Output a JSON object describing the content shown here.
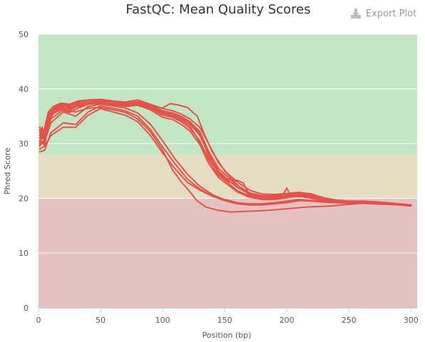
{
  "chart_data": {
    "type": "line",
    "title": "FastQC: Mean Quality Scores",
    "xlabel": "Position (bp)",
    "ylabel": "Phred Score",
    "xlim": [
      0,
      305
    ],
    "ylim": [
      0,
      50
    ],
    "x_ticks": [
      "0",
      "50",
      "100",
      "150",
      "200",
      "250",
      "300"
    ],
    "y_ticks": [
      "0",
      "10",
      "20",
      "30",
      "40",
      "50"
    ],
    "bands": [
      {
        "from": 28,
        "to": 50,
        "color": "#c4e5c4"
      },
      {
        "from": 20,
        "to": 28,
        "color": "#e6dcc3"
      },
      {
        "from": 0,
        "to": 20,
        "color": "#e5c1c1"
      }
    ],
    "line_color": "#e2534b",
    "grid": true,
    "legend": "none",
    "series": [
      {
        "x": [
          1,
          3,
          5,
          8,
          12,
          18,
          25,
          32,
          40,
          50,
          60,
          70,
          80,
          90,
          100,
          108,
          115,
          122,
          130,
          137,
          145,
          152,
          160,
          170,
          180,
          190,
          200,
          210,
          220,
          230,
          240,
          250,
          260,
          270,
          280,
          290,
          300
        ],
        "y": [
          32,
          33,
          31,
          35,
          36.2,
          37,
          36.8,
          37.4,
          37.6,
          37.8,
          37.5,
          37.2,
          37.5,
          36.8,
          35.6,
          35.2,
          34.6,
          33.6,
          31.5,
          28,
          25,
          23.5,
          22,
          20.8,
          20.3,
          20.3,
          20.5,
          20.8,
          20.4,
          19.8,
          19.4,
          19.3,
          19.3,
          19.2,
          19.1,
          18.9,
          18.7
        ]
      },
      {
        "x": [
          1,
          3,
          5,
          8,
          12,
          18,
          25,
          32,
          40,
          50,
          60,
          70,
          80,
          90,
          100,
          108,
          115,
          122,
          130,
          137,
          145,
          152,
          160,
          170,
          180,
          190,
          200,
          210,
          220,
          230,
          240,
          250,
          260,
          270,
          280,
          290,
          300
        ],
        "y": [
          31.5,
          32.5,
          30.5,
          34.5,
          36,
          36.5,
          36,
          37,
          37.5,
          37.6,
          37.3,
          37,
          37.2,
          36.5,
          35.2,
          34.8,
          34,
          32.8,
          30.5,
          27,
          24.2,
          23,
          21.4,
          20.4,
          20,
          20,
          20.3,
          20.6,
          20.2,
          19.6,
          19.3,
          19.2,
          19.2,
          19.1,
          19,
          18.9,
          18.7
        ]
      },
      {
        "x": [
          1,
          3,
          5,
          8,
          12,
          18,
          25,
          32,
          40,
          50,
          60,
          70,
          80,
          90,
          100,
          108,
          115,
          122,
          130,
          137,
          145,
          152,
          160,
          170,
          180,
          190,
          200,
          210,
          220,
          230,
          240,
          250,
          260,
          270,
          280,
          290,
          300
        ],
        "y": [
          33,
          32,
          32.5,
          35.5,
          36.5,
          37.2,
          37,
          37.6,
          37.9,
          38,
          37.7,
          37.4,
          37.7,
          37,
          36,
          35.6,
          35,
          34,
          32.2,
          28.6,
          25.5,
          24,
          22.4,
          21,
          20.5,
          20.5,
          20.7,
          21,
          20.6,
          20,
          19.6,
          19.4,
          19.4,
          19.3,
          19.2,
          19,
          18.8
        ]
      },
      {
        "x": [
          1,
          3,
          5,
          8,
          12,
          18,
          25,
          32,
          40,
          50,
          60,
          70,
          80,
          90,
          100,
          108,
          115,
          122,
          130,
          137,
          145,
          152,
          160,
          170,
          180,
          190,
          200,
          210,
          220,
          230,
          240,
          250,
          260,
          270,
          280,
          290,
          300
        ],
        "y": [
          30.5,
          30,
          31,
          34,
          35.5,
          36.2,
          35.7,
          36.5,
          37.2,
          37.4,
          37.1,
          36.8,
          37,
          36.2,
          34.8,
          34.4,
          33.5,
          32.3,
          29.8,
          26.4,
          23.8,
          22.6,
          21.2,
          20.2,
          19.8,
          19.8,
          20.1,
          20.4,
          20,
          19.5,
          19.2,
          19.1,
          19.1,
          19,
          18.9,
          18.8,
          18.6
        ]
      },
      {
        "x": [
          1,
          3,
          5,
          8,
          12,
          18,
          25,
          32,
          40,
          50,
          60,
          70,
          80,
          90,
          100,
          108,
          115,
          122,
          130,
          137,
          145,
          152,
          160,
          170,
          180,
          190,
          200,
          210,
          220,
          230,
          240,
          250,
          260,
          270,
          280,
          290,
          300
        ],
        "y": [
          32.5,
          31,
          33,
          35.8,
          36.8,
          37.4,
          37.2,
          37.8,
          38,
          38.1,
          37.8,
          37.6,
          38,
          37.2,
          36.4,
          36,
          35.4,
          34.5,
          33,
          30,
          26.5,
          24.6,
          23,
          21.5,
          20.8,
          20.7,
          20.9,
          21.1,
          20.8,
          20.1,
          19.7,
          19.5,
          19.5,
          19.4,
          19.2,
          19,
          18.8
        ]
      },
      {
        "x": [
          1,
          3,
          5,
          8,
          12,
          18,
          25,
          32,
          40,
          50,
          60,
          70,
          80,
          90,
          100,
          108,
          115,
          122,
          130,
          137,
          145,
          152,
          160,
          165,
          170,
          180,
          190,
          196,
          200,
          203,
          210,
          220,
          230,
          240,
          250,
          260,
          270,
          280,
          290,
          300
        ],
        "y": [
          30,
          32,
          30,
          34.5,
          36,
          36.8,
          36.3,
          37,
          37.6,
          37.7,
          37.4,
          37,
          37.3,
          36.6,
          35.5,
          35,
          34.3,
          33.2,
          30.2,
          27.5,
          24.8,
          23.5,
          23.3,
          22.8,
          20.5,
          19.8,
          19.8,
          20.2,
          21.9,
          20.5,
          20.3,
          20.3,
          19.8,
          19.4,
          19.2,
          19.2,
          19.1,
          19,
          18.9,
          18.7
        ]
      },
      {
        "x": [
          1,
          3,
          5,
          8,
          12,
          18,
          25,
          32,
          40,
          50,
          60,
          70,
          80,
          90,
          100,
          106,
          112,
          120,
          128,
          133,
          140,
          150,
          160,
          170,
          180,
          190,
          200,
          210,
          220,
          230,
          240,
          250,
          260,
          270,
          280,
          290,
          300
        ],
        "y": [
          31,
          32,
          31.5,
          35,
          36.3,
          36.8,
          36.4,
          37.2,
          37.5,
          37.5,
          37.2,
          37,
          37.5,
          36.9,
          36.5,
          37.3,
          37.1,
          36.6,
          35,
          32,
          28.5,
          25,
          22.5,
          20.6,
          20,
          20.1,
          20.4,
          20.7,
          20.3,
          19.7,
          19.4,
          19.3,
          19.3,
          19.2,
          19.1,
          18.9,
          18.7
        ]
      },
      {
        "x": [
          1,
          3,
          5,
          8,
          12,
          18,
          25,
          32,
          40,
          50,
          60,
          70,
          80,
          90,
          100,
          108,
          115,
          122,
          130,
          137,
          145,
          152,
          160,
          170,
          180,
          190,
          200,
          210,
          220,
          230,
          240,
          250,
          260,
          270,
          280,
          290,
          300
        ],
        "y": [
          29.5,
          30.5,
          29.5,
          34,
          35.8,
          36.5,
          36.6,
          36.8,
          37.2,
          37.5,
          37.3,
          37.1,
          37.4,
          36.8,
          35.8,
          35.5,
          34.8,
          33.9,
          31.8,
          28.3,
          24.6,
          23.2,
          22.4,
          20.9,
          20.3,
          20.4,
          20.6,
          21,
          20.5,
          19.9,
          19.5,
          19.4,
          19.4,
          19.3,
          19.1,
          18.9,
          18.7
        ]
      },
      {
        "x": [
          1,
          5,
          10,
          20,
          30,
          40,
          50,
          60,
          70,
          80,
          90,
          100,
          110,
          120,
          130,
          140,
          150,
          160,
          170,
          180,
          190,
          200,
          210,
          220,
          230,
          240,
          250,
          260,
          270,
          280,
          290,
          300
        ],
        "y": [
          29,
          29.5,
          31.5,
          33,
          33,
          35.2,
          36.4,
          35.8,
          35.2,
          34,
          31.5,
          28.3,
          25.4,
          22.9,
          21.5,
          20.4,
          19.6,
          19,
          18.8,
          18.8,
          19,
          19.2,
          19.6,
          19.5,
          19.3,
          19.2,
          19.2,
          19.2,
          19.2,
          19,
          18.9,
          18.7
        ]
      },
      {
        "x": [
          1,
          5,
          10,
          20,
          30,
          40,
          50,
          60,
          70,
          80,
          90,
          100,
          110,
          120,
          130,
          140,
          150,
          160,
          170,
          180,
          190,
          200,
          210,
          220,
          230,
          240,
          250,
          260,
          270,
          280,
          290,
          300
        ],
        "y": [
          28.5,
          28.8,
          32,
          33.8,
          33.5,
          35.8,
          36.9,
          36.5,
          36,
          35,
          32.6,
          29.4,
          26.3,
          23.5,
          21.7,
          20.5,
          19.8,
          19.2,
          19,
          19,
          19.2,
          19.5,
          19.8,
          19.6,
          19.4,
          19.3,
          19.3,
          19.3,
          19.2,
          19.1,
          18.9,
          18.7
        ]
      },
      {
        "x": [
          1,
          5,
          10,
          20,
          30,
          40,
          50,
          60,
          70,
          80,
          90,
          100,
          110,
          120,
          130,
          140,
          150,
          160,
          170,
          180,
          190,
          200,
          210,
          220,
          230,
          240,
          250,
          260,
          270,
          280,
          290,
          300
        ],
        "y": [
          29.8,
          30.5,
          33.8,
          35.8,
          35,
          36.8,
          37.2,
          36.9,
          36.5,
          35.6,
          33.6,
          30.5,
          27.2,
          24.4,
          22.2,
          20.7,
          19.7,
          19.1,
          18.8,
          18.8,
          19,
          19.3,
          19.7,
          19.6,
          19.4,
          19.3,
          19.3,
          19.3,
          19.2,
          19.1,
          18.9,
          18.7
        ]
      },
      {
        "x": [
          1,
          5,
          10,
          20,
          30,
          40,
          50,
          60,
          70,
          80,
          90,
          100,
          108,
          115,
          122,
          128,
          135,
          145,
          155,
          165,
          175,
          185,
          195,
          205,
          215,
          225,
          235,
          245,
          255,
          265,
          275,
          285,
          295,
          300
        ],
        "y": [
          30.5,
          31.5,
          34.5,
          36.2,
          35.8,
          36.5,
          36.6,
          36.2,
          35.7,
          34.5,
          32.2,
          28.8,
          25.2,
          23,
          21.2,
          19.5,
          18.4,
          17.8,
          17.5,
          17.6,
          17.7,
          17.8,
          18.0,
          18.2,
          18.4,
          18.5,
          18.6,
          18.8,
          19,
          19.2,
          19.2,
          19.1,
          18.9,
          18.8
        ]
      }
    ]
  }
}
